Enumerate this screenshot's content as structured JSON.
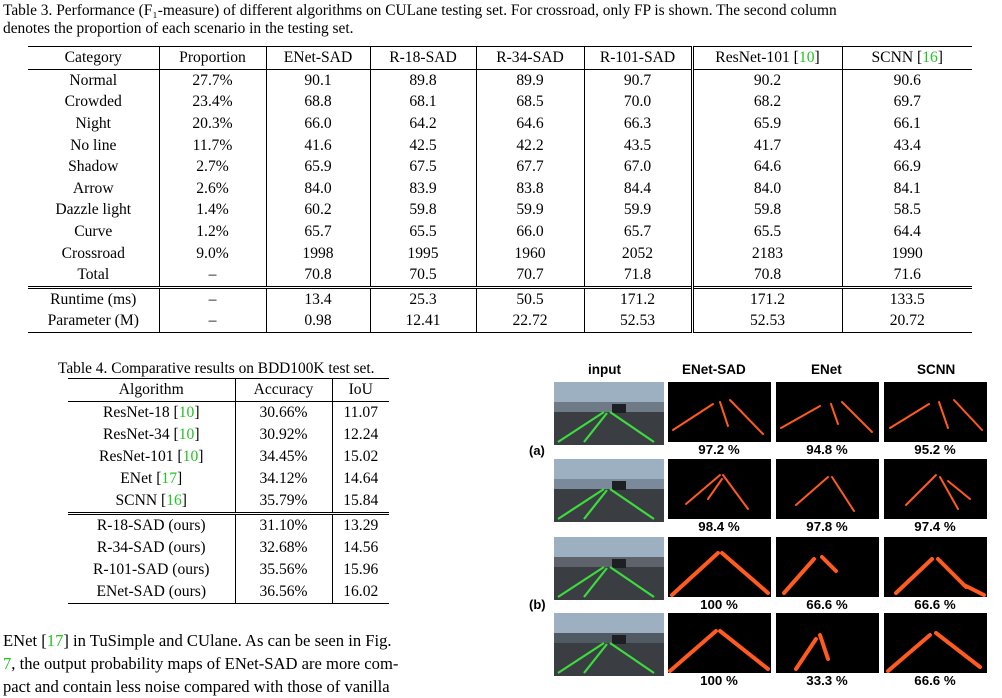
{
  "table3": {
    "caption_line1": "Table 3. Performance (F₁-measure) of different algorithms on CULane testing set. For crossroad, only FP is shown. The second column",
    "caption_line2": "denotes the proportion of each scenario in the testing set.",
    "headers": [
      "Category",
      "Proportion",
      "ENet-SAD",
      "R-18-SAD",
      "R-34-SAD",
      "R-101-SAD",
      "ResNet-101 [",
      "SCNN ["
    ],
    "header_refs": [
      "10",
      "16"
    ],
    "header_tail": "]",
    "rows": [
      [
        "Normal",
        "27.7%",
        "90.1",
        "89.8",
        "89.9",
        "90.7",
        "90.2",
        "90.6"
      ],
      [
        "Crowded",
        "23.4%",
        "68.8",
        "68.1",
        "68.5",
        "70.0",
        "68.2",
        "69.7"
      ],
      [
        "Night",
        "20.3%",
        "66.0",
        "64.2",
        "64.6",
        "66.3",
        "65.9",
        "66.1"
      ],
      [
        "No line",
        "11.7%",
        "41.6",
        "42.5",
        "42.2",
        "43.5",
        "41.7",
        "43.4"
      ],
      [
        "Shadow",
        "2.7%",
        "65.9",
        "67.5",
        "67.7",
        "67.0",
        "64.6",
        "66.9"
      ],
      [
        "Arrow",
        "2.6%",
        "84.0",
        "83.9",
        "83.8",
        "84.4",
        "84.0",
        "84.1"
      ],
      [
        "Dazzle light",
        "1.4%",
        "60.2",
        "59.8",
        "59.9",
        "59.9",
        "59.8",
        "58.5"
      ],
      [
        "Curve",
        "1.2%",
        "65.7",
        "65.5",
        "66.0",
        "65.7",
        "65.5",
        "64.4"
      ],
      [
        "Crossroad",
        "9.0%",
        "1998",
        "1995",
        "1960",
        "2052",
        "2183",
        "1990"
      ],
      [
        "Total",
        "–",
        "70.8",
        "70.5",
        "70.7",
        "71.8",
        "70.8",
        "71.6"
      ]
    ],
    "rows2": [
      [
        "Runtime (ms)",
        "–",
        "13.4",
        "25.3",
        "50.5",
        "171.2",
        "171.2",
        "133.5"
      ],
      [
        "Parameter (M)",
        "–",
        "0.98",
        "12.41",
        "22.72",
        "52.53",
        "52.53",
        "20.72"
      ]
    ]
  },
  "table4": {
    "caption": "Table 4. Comparative results on BDD100K test set.",
    "headers": [
      "Algorithm",
      "Accuracy",
      "IoU"
    ],
    "rows": [
      [
        "ResNet-18 [",
        "10",
        "]",
        "30.66%",
        "11.07"
      ],
      [
        "ResNet-34 [",
        "10",
        "]",
        "30.92%",
        "12.24"
      ],
      [
        "ResNet-101 [",
        "10",
        "]",
        "34.45%",
        "15.02"
      ],
      [
        "ENet [",
        "17",
        "]",
        "34.12%",
        "14.64"
      ],
      [
        "SCNN [",
        "16",
        "]",
        "35.79%",
        "15.84"
      ]
    ],
    "ours": [
      [
        "R-18-SAD (ours)",
        "31.10%",
        "13.29"
      ],
      [
        "R-34-SAD (ours)",
        "32.68%",
        "14.56"
      ],
      [
        "R-101-SAD (ours)",
        "35.56%",
        "15.96"
      ],
      [
        "ENet-SAD (ours)",
        "36.56%",
        "16.02"
      ]
    ]
  },
  "body": {
    "l1a": "ENet [",
    "l1ref": "17",
    "l1b": "] in TuSimple and CUlane. As can be seen in Fig.",
    "l2ref": "7",
    "l2b": ", the output probability maps of ENet-SAD are more com-",
    "l3": "pact and contain less noise compared with those of vanilla"
  },
  "figure": {
    "headers": [
      "input",
      "ENet-SAD",
      "ENet",
      "SCNN"
    ],
    "group_labels": [
      "(a)",
      "(b)"
    ],
    "percentages": [
      [
        "97.2 %",
        "94.8 %",
        "95.2 %"
      ],
      [
        "98.4 %",
        "97.8 %",
        "97.4 %"
      ],
      [
        "100 %",
        "66.6 %",
        "66.6 %"
      ],
      [
        "100 %",
        "33.3 %",
        "66.6 %"
      ]
    ],
    "lane_color": "#ff5a1f",
    "overlay_color": "#3ddc3d"
  }
}
